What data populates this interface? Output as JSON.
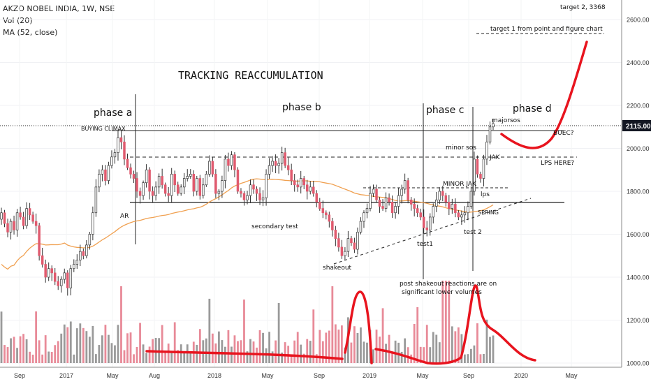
{
  "header": {
    "symbol_line": "AKZO NOBEL INDIA, 1W, NSE",
    "volume_line": "Vol (20)",
    "ma_line": "MA (52, close)"
  },
  "price_axis": {
    "ticks": [
      1000,
      1200,
      1400,
      1600,
      1800,
      2000,
      2200,
      2400,
      2600
    ],
    "tick_labels": [
      "1000.00",
      "1200.00",
      "1400.00",
      "1600.00",
      "1800.00",
      "2000.00",
      "2200.00",
      "2400.00",
      "2600.00"
    ],
    "last_price_label": "2115.00",
    "last_price": 2115,
    "ylim": [
      980,
      2740
    ]
  },
  "time_axis": {
    "labels": [
      "Sep",
      "2017",
      "May",
      "Aug",
      "2018",
      "May",
      "Sep",
      "2019",
      "May",
      "Sep",
      "2020",
      "May"
    ]
  },
  "annotations": {
    "title": "TRACKING REACCUMULATION",
    "target2": "target 2,  3368",
    "target1": "target 1 from point and figure chart",
    "phase_a": "phase a",
    "phase_b": "phase b",
    "phase_c": "phase c",
    "phase_d": "phase d",
    "buying_climax": "BUYING CLIMAX",
    "ar": "AR",
    "secondary_test": "secondary test",
    "shakeout": "shakeout",
    "test1": "test1",
    "test2": "test 2",
    "spring": "SPRING",
    "lps_small": "lps",
    "minor_jak": "MINOR JAK",
    "minor_sos": "minor sos",
    "jak": "JAK",
    "major_sos": "majorsos",
    "buec": "BUEC?",
    "lps_here": "LPS HERE?",
    "volume_note_1": "post shakeout reactions are on",
    "volume_note_2": "significant lower volumes"
  },
  "colors": {
    "up": "#ffffff",
    "down": "#e05a6e",
    "wick": "#333333",
    "ma": "#f0a050",
    "vol_up": "#9a9a9a",
    "vol_down": "#e88a98",
    "red_line": "#e8141e"
  },
  "chart_data": {
    "type": "candlestick",
    "timeframe": "1W",
    "moving_average": "MA (52, close)",
    "close_series_weekly": [
      1700,
      1650,
      1610,
      1660,
      1620,
      1700,
      1680,
      1640,
      1720,
      1690,
      1660,
      1640,
      1500,
      1460,
      1400,
      1440,
      1420,
      1380,
      1360,
      1390,
      1420,
      1350,
      1440,
      1460,
      1480,
      1520,
      1500,
      1550,
      1600,
      1700,
      1820,
      1880,
      1900,
      1850,
      1920,
      1960,
      1980,
      2050,
      2030,
      1950,
      1910,
      1880,
      1860,
      1800,
      1780,
      1840,
      1900,
      1800,
      1780,
      1820,
      1870,
      1830,
      1790,
      1780,
      1880,
      1830,
      1790,
      1820,
      1860,
      1870,
      1880,
      1800,
      1860,
      1780,
      1830,
      1880,
      1940,
      1880,
      1790,
      1800,
      1850,
      1950,
      1920,
      1970,
      1900,
      1800,
      1790,
      1760,
      1780,
      1830,
      1810,
      1790,
      1760,
      1770,
      1880,
      1920,
      1940,
      1920,
      1930,
      1980,
      1920,
      1900,
      1850,
      1830,
      1820,
      1860,
      1830,
      1800,
      1820,
      1790,
      1750,
      1720,
      1700,
      1690,
      1660,
      1620,
      1580,
      1540,
      1500,
      1520,
      1580,
      1560,
      1530,
      1610,
      1660,
      1700,
      1720,
      1790,
      1810,
      1760,
      1730,
      1720,
      1770,
      1750,
      1700,
      1730,
      1780,
      1810,
      1850,
      1760,
      1740,
      1720,
      1700,
      1680,
      1630,
      1620,
      1680,
      1730,
      1760,
      1800,
      1780,
      1750,
      1720,
      1740,
      1700,
      1680,
      1690,
      1700,
      1730,
      1800,
      1950,
      1880,
      1860,
      1950,
      2030,
      2100,
      2115
    ]
  }
}
